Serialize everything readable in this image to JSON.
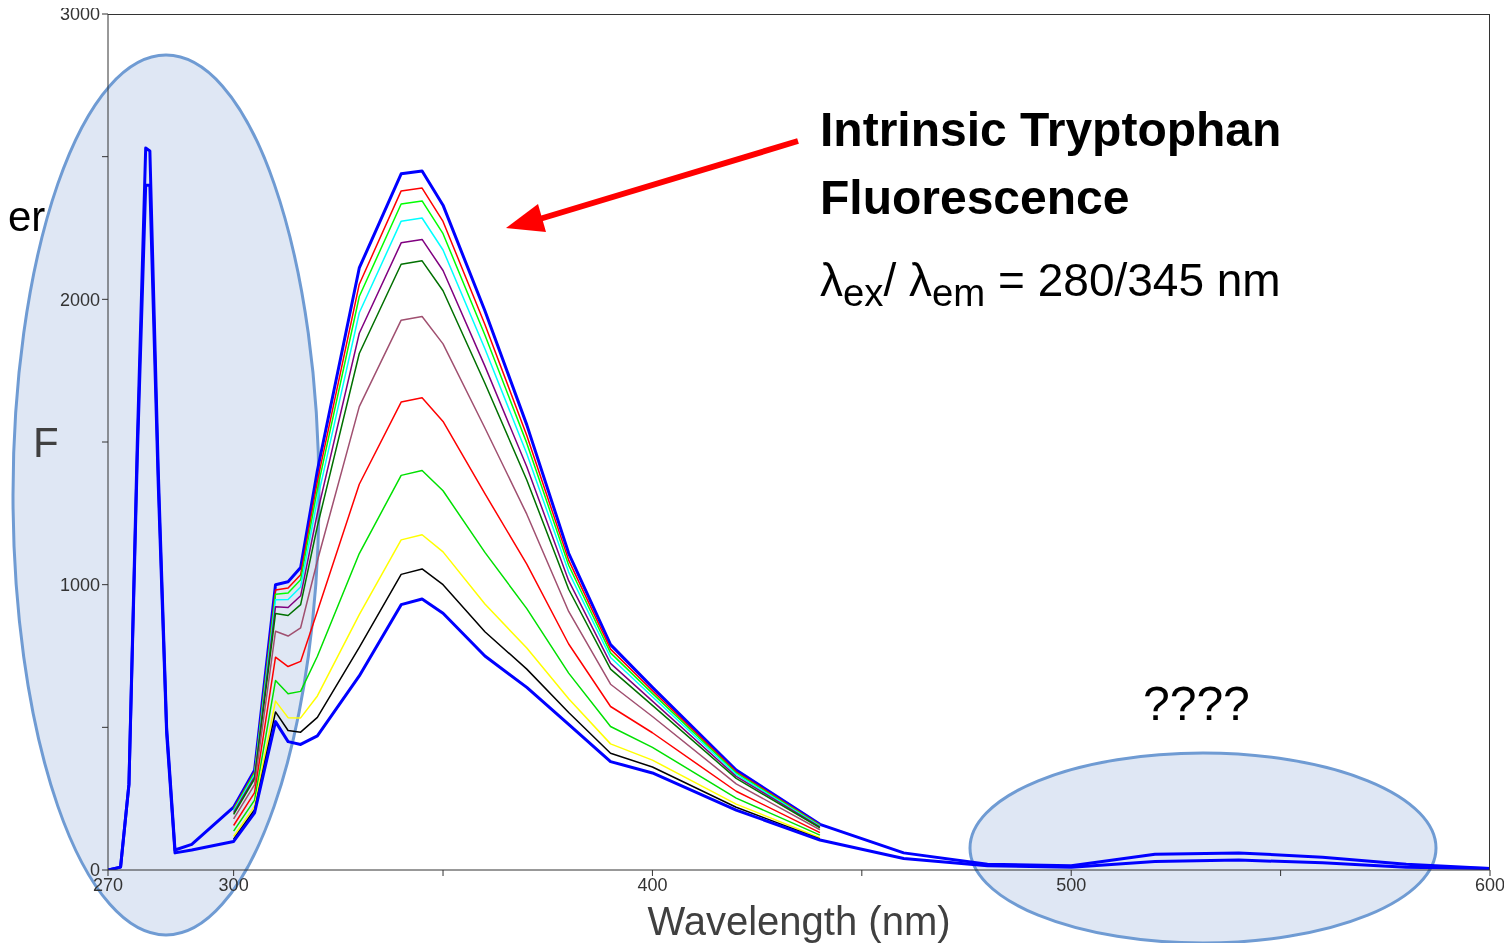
{
  "chart_data": {
    "type": "line",
    "xlabel": "Wavelength (nm)",
    "ylabel": "F",
    "x": [
      270,
      273,
      275,
      277,
      279,
      280,
      282,
      284,
      286,
      290,
      300,
      305,
      310,
      313,
      316,
      320,
      330,
      340,
      345,
      350,
      360,
      370,
      380,
      390,
      400,
      420,
      440,
      460,
      480,
      500,
      520,
      540,
      560,
      580,
      600
    ],
    "series": [
      {
        "color": "#0000ff",
        "values": [
          0,
          10,
          300,
          1500,
          2530,
          2520,
          1400,
          500,
          70,
          90,
          220,
          350,
          1000,
          1010,
          1060,
          1400,
          2110,
          2440,
          2450,
          2330,
          1960,
          1560,
          1110,
          790,
          640,
          350,
          160,
          60,
          20,
          15,
          55,
          60,
          45,
          20,
          5
        ]
      },
      {
        "color": "#ff0000",
        "values": [
          null,
          null,
          null,
          null,
          null,
          null,
          null,
          null,
          null,
          null,
          215,
          344,
          981,
          988,
          1035,
          1363,
          2053,
          2380,
          2390,
          2273,
          1912,
          1523,
          1086,
          774,
          628,
          344,
          158,
          null,
          null,
          null,
          null,
          null,
          null,
          null,
          null
        ]
      },
      {
        "color": "#00ff00",
        "values": [
          null,
          null,
          null,
          null,
          null,
          null,
          null,
          null,
          null,
          null,
          212,
          340,
          966,
          971,
          1017,
          1335,
          2010,
          2334,
          2345,
          2230,
          1875,
          1496,
          1068,
          761,
          619,
          340,
          156,
          null,
          null,
          null,
          null,
          null,
          null,
          null,
          null
        ]
      },
      {
        "color": "#00ffff",
        "values": [
          null,
          null,
          null,
          null,
          null,
          null,
          null,
          null,
          null,
          null,
          207,
          334,
          947,
          948,
          992,
          1298,
          1953,
          2274,
          2285,
          2173,
          1827,
          1459,
          1044,
          745,
          607,
          335,
          154,
          null,
          null,
          null,
          null,
          null,
          null,
          null,
          null
        ]
      },
      {
        "color": "#800080",
        "values": [
          null,
          null,
          null,
          null,
          null,
          null,
          null,
          null,
          null,
          null,
          201,
          326,
          923,
          920,
          961,
          1251,
          1881,
          2198,
          2210,
          2101,
          1766,
          1413,
          1014,
          724,
          592,
          328,
          151,
          null,
          null,
          null,
          null,
          null,
          null,
          null,
          null
        ]
      },
      {
        "color": "#007000",
        "values": [
          null,
          null,
          null,
          null,
          null,
          null,
          null,
          null,
          null,
          null,
          195,
          319,
          899,
          892,
          930,
          1205,
          1810,
          2123,
          2135,
          2030,
          1706,
          1367,
          984,
          704,
          577,
          321,
          148,
          null,
          null,
          null,
          null,
          null,
          null,
          null,
          null
        ]
      },
      {
        "color": "#a05070",
        "values": [
          null,
          null,
          null,
          null,
          null,
          null,
          null,
          null,
          null,
          null,
          179,
          299,
          837,
          820,
          849,
          1084,
          1624,
          1927,
          1940,
          1844,
          1549,
          1247,
          906,
          651,
          538,
          302,
          141,
          null,
          null,
          null,
          null,
          null,
          null,
          null,
          null
        ]
      },
      {
        "color": "#ff0000",
        "values": [
          null,
          null,
          null,
          null,
          null,
          null,
          null,
          null,
          null,
          null,
          156,
          271,
          746,
          713,
          731,
          907,
          1352,
          1640,
          1655,
          1572,
          1319,
          1072,
          792,
          573,
          481,
          276,
          131,
          null,
          null,
          null,
          null,
          null,
          null,
          null,
          null
        ]
      },
      {
        "color": "#00e000",
        "values": [
          null,
          null,
          null,
          null,
          null,
          null,
          null,
          null,
          null,
          null,
          136,
          245,
          664,
          618,
          626,
          749,
          1109,
          1383,
          1400,
          1329,
          1113,
          916,
          690,
          503,
          430,
          252,
          122,
          null,
          null,
          null,
          null,
          null,
          null,
          null,
          null
        ]
      },
      {
        "color": "#ffff00",
        "values": [
          null,
          null,
          null,
          null,
          null,
          null,
          null,
          null,
          null,
          null,
          118,
          223,
          592,
          534,
          533,
          610,
          895,
          1157,
          1175,
          1115,
          932,
          778,
          600,
          442,
          385,
          231,
          113,
          null,
          null,
          null,
          null,
          null,
          null,
          null,
          null
        ]
      },
      {
        "color": "#000000",
        "values": [
          null,
          null,
          null,
          null,
          null,
          null,
          null,
          null,
          null,
          null,
          108,
          211,
          554,
          489,
          483,
          535,
          780,
          1036,
          1055,
          1000,
          835,
          704,
          552,
          409,
          361,
          220,
          109,
          null,
          null,
          null,
          null,
          null,
          null,
          null,
          null
        ]
      },
      {
        "color": "#0000ff",
        "values": [
          0,
          10,
          300,
          1450,
          2400,
          2400,
          1350,
          480,
          60,
          70,
          100,
          200,
          520,
          450,
          440,
          470,
          680,
          930,
          950,
          900,
          750,
          640,
          510,
          380,
          340,
          210,
          105,
          40,
          15,
          10,
          30,
          35,
          25,
          10,
          5
        ]
      }
    ],
    "xlim": [
      270,
      600
    ],
    "xticks": [
      270,
      300,
      {
        "value": 350,
        "label": null
      },
      400,
      {
        "value": 450,
        "label": null
      },
      500,
      {
        "value": 550,
        "label": null
      },
      600
    ],
    "ylim": [
      0,
      3000
    ],
    "yticks": [
      0,
      {
        "value": 500,
        "label": null
      },
      1000,
      {
        "value": 1500,
        "label": null
      },
      2000,
      {
        "value": 2500,
        "label": null
      },
      3000
    ],
    "grid": false,
    "legend": false,
    "marker": "none",
    "line_style": "solid",
    "annotations": [
      "er",
      "Intrinsic Tryptophan Fluorescence",
      "λ$_{ex}$/ λ$_{em}$ = 280/345 nm",
      "????"
    ]
  }
}
